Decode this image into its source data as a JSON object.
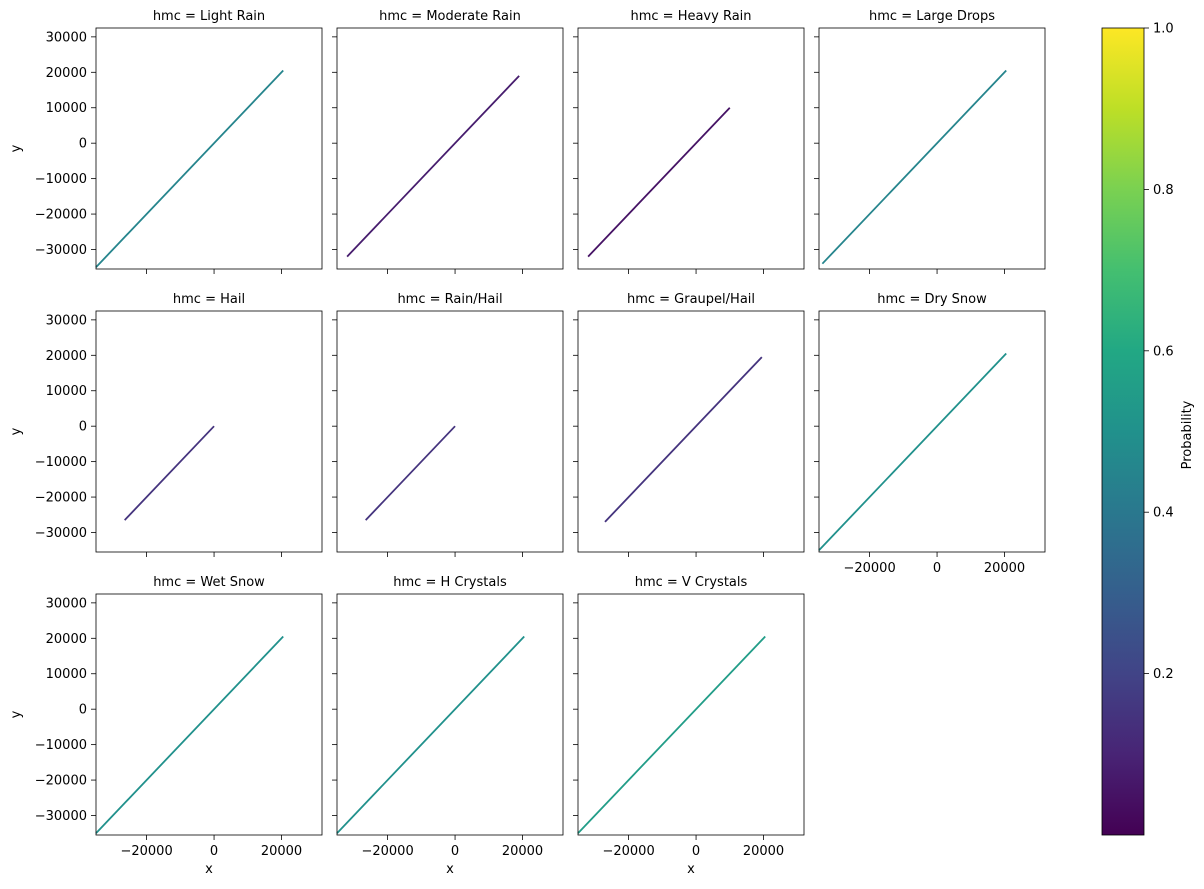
{
  "chart_data": {
    "type": "facet_grid_line",
    "facet_prefix": "hmc = ",
    "xlabel": "x",
    "ylabel": "y",
    "xlim": [
      -35000,
      32000
    ],
    "ylim": [
      -35500,
      32500
    ],
    "x_ticks": [
      -20000,
      0,
      20000
    ],
    "y_ticks": [
      -30000,
      -20000,
      -10000,
      0,
      10000,
      20000,
      30000
    ],
    "grid": false,
    "colorbar": {
      "label": "Probability",
      "colormap": "viridis",
      "range": [
        0,
        1
      ],
      "ticks": [
        0.2,
        0.4,
        0.6,
        0.8,
        1.0
      ]
    },
    "facets": [
      {
        "name": "Light Rain",
        "x_range": [
          -35000,
          20500
        ],
        "probability": 0.45
      },
      {
        "name": "Moderate Rain",
        "x_range": [
          -32000,
          19000
        ],
        "probability": 0.08
      },
      {
        "name": "Heavy Rain",
        "x_range": [
          -32000,
          10000
        ],
        "probability": 0.05
      },
      {
        "name": "Large Drops",
        "x_range": [
          -34000,
          20500
        ],
        "probability": 0.45
      },
      {
        "name": "Hail",
        "x_range": [
          -26500,
          0
        ],
        "probability": 0.15
      },
      {
        "name": "Rain/Hail",
        "x_range": [
          -26500,
          0
        ],
        "probability": 0.15
      },
      {
        "name": "Graupel/Hail",
        "x_range": [
          -27000,
          19500
        ],
        "probability": 0.15
      },
      {
        "name": "Dry Snow",
        "x_range": [
          -35000,
          20500
        ],
        "probability": 0.5
      },
      {
        "name": "Wet Snow",
        "x_range": [
          -35000,
          20500
        ],
        "probability": 0.5
      },
      {
        "name": "H Crystals",
        "x_range": [
          -35000,
          20500
        ],
        "probability": 0.5
      },
      {
        "name": "V Crystals",
        "x_range": [
          -35000,
          20500
        ],
        "probability": 0.55
      }
    ]
  }
}
